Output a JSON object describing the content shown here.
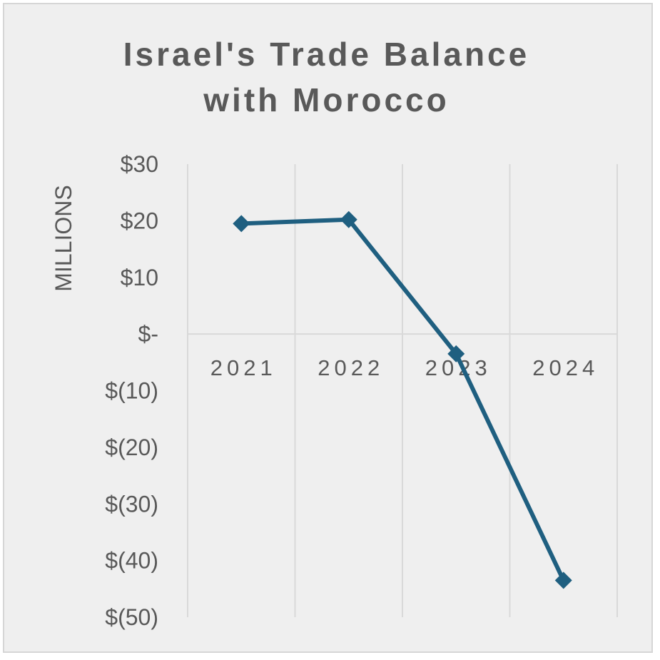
{
  "chart_data": {
    "type": "line",
    "title_lines": [
      "Israel's Trade Balance",
      "with Morocco"
    ],
    "ylabel": "MILLIONS",
    "xlabel": "",
    "categories": [
      "2021",
      "2022",
      "2023",
      "2024"
    ],
    "series": [
      {
        "values": [
          19.5,
          20.2,
          -3.5,
          -43.5
        ]
      }
    ],
    "ylim": [
      -50,
      30
    ],
    "yticks": [
      30,
      20,
      10,
      0,
      -10,
      -20,
      -30,
      -40,
      -50
    ],
    "ytick_labels": [
      "$30",
      "$20",
      "$10",
      "$-",
      "$(10)",
      "$(20)",
      "$(30)",
      "$(40)",
      "$(50)"
    ],
    "grid": "vertical",
    "legend": "none",
    "marker": "diamond",
    "colors": {
      "line": "#1f5f80",
      "grid": "#d9d9d9",
      "text": "#595959"
    }
  }
}
